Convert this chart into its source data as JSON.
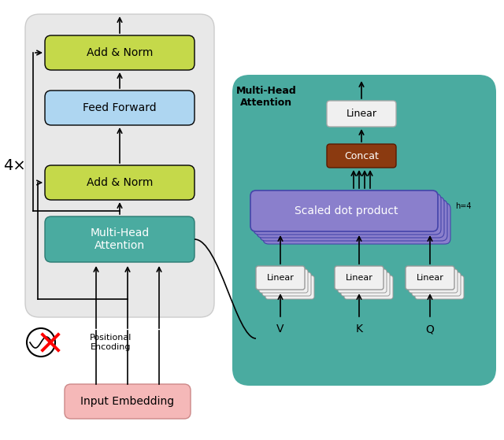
{
  "fig_width": 6.4,
  "fig_height": 5.59,
  "dpi": 100,
  "bg_color": "#ffffff",
  "left_panel_bg": "#e8e8e8",
  "right_panel_bg": "#4aaba0",
  "add_norm_color": "#c5d94a",
  "feed_forward_color": "#aed6f1",
  "multi_head_color": "#4aaba0",
  "input_embed_color": "#f5b8b8",
  "linear_color": "#f0f0f0",
  "concat_color": "#8b3a10",
  "scaled_dot_color": "#8a7fcc",
  "title_multihead": "Multi-Head\nAttention",
  "label_4x": "4×",
  "label_add_norm1": "Add & Norm",
  "label_feed_forward": "Feed Forward",
  "label_add_norm2": "Add & Norm",
  "label_multi_head": "Multi-Head\nAttention",
  "label_input_embed": "Input Embedding",
  "label_pos_enc": "Positional\nEncoding",
  "label_linear_top": "Linear",
  "label_concat": "Concat",
  "label_scaled_dot": "Scaled dot product",
  "label_linear_v": "Linear",
  "label_linear_k": "Linear",
  "label_linear_q": "Linear",
  "label_v": "V",
  "label_k": "K",
  "label_q": "Q",
  "label_h4": "h=4"
}
